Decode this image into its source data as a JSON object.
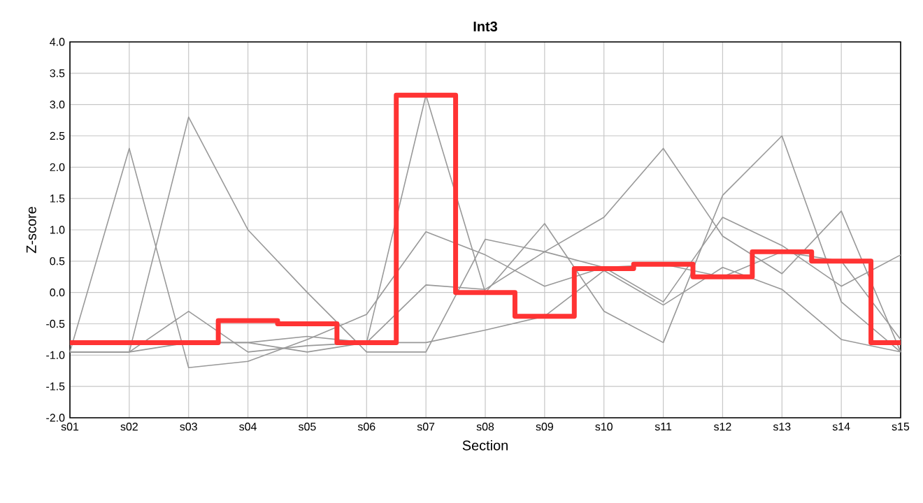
{
  "chart_data": {
    "type": "line",
    "title": "Int3",
    "xlabel": "Section",
    "ylabel": "Z-score",
    "categories": [
      "s01",
      "s02",
      "s03",
      "s04",
      "s05",
      "s06",
      "s07",
      "s08",
      "s09",
      "s10",
      "s11",
      "s12",
      "s13",
      "s14",
      "s15"
    ],
    "ylim": [
      -2,
      4
    ],
    "yticks": [
      {
        "value": -2,
        "label": "-2.0"
      },
      {
        "value": -1.5,
        "label": "-1.5"
      },
      {
        "value": -1,
        "label": "-1.0"
      },
      {
        "value": -0.5,
        "label": "-0.5"
      },
      {
        "value": 0,
        "label": "0.0"
      },
      {
        "value": 0.5,
        "label": "0.5"
      },
      {
        "value": 1,
        "label": "1.0"
      },
      {
        "value": 1.5,
        "label": "1.5"
      },
      {
        "value": 2,
        "label": "2.0"
      },
      {
        "value": 2.5,
        "label": "2.5"
      },
      {
        "value": 3,
        "label": "3.0"
      },
      {
        "value": 3.5,
        "label": "3.5"
      },
      {
        "value": 4,
        "label": "4.0"
      }
    ],
    "grid": true,
    "marker": "none",
    "line_style": "solid",
    "series": [
      {
        "color": "#999999",
        "values": [
          -0.95,
          2.3,
          -1.2,
          -1.1,
          -0.75,
          -0.35,
          0.97,
          0.6,
          0.1,
          0.4,
          -0.15,
          1.2,
          0.75,
          0.1,
          0.6
        ]
      },
      {
        "color": "#999999",
        "values": [
          -0.95,
          -0.95,
          2.8,
          1.0,
          0.0,
          -0.95,
          -0.95,
          0.85,
          0.65,
          1.2,
          2.3,
          0.9,
          0.3,
          1.3,
          -0.95
        ]
      },
      {
        "color": "#999999",
        "values": [
          -0.95,
          -0.95,
          -0.3,
          -0.95,
          -0.85,
          -0.8,
          3.15,
          0.0,
          1.1,
          -0.3,
          -0.8,
          1.55,
          2.5,
          -0.15,
          -0.95
        ]
      },
      {
        "color": "#999999",
        "values": [
          -0.8,
          -0.8,
          -0.8,
          -0.8,
          -0.7,
          -0.8,
          -0.8,
          -0.6,
          -0.38,
          0.35,
          -0.2,
          0.4,
          0.05,
          -0.75,
          -0.95
        ]
      },
      {
        "color": "#999999",
        "values": [
          -0.95,
          -0.95,
          -0.8,
          -0.8,
          -0.95,
          -0.8,
          0.12,
          0.05,
          0.65,
          0.4,
          0.45,
          0.25,
          0.65,
          0.5,
          -0.75
        ]
      },
      {
        "type": "step",
        "color": "#ff3333",
        "values": [
          -0.8,
          -0.8,
          -0.8,
          -0.45,
          -0.5,
          -0.8,
          3.15,
          0.0,
          -0.38,
          0.38,
          0.45,
          0.25,
          0.65,
          0.5,
          -0.8
        ]
      }
    ]
  }
}
